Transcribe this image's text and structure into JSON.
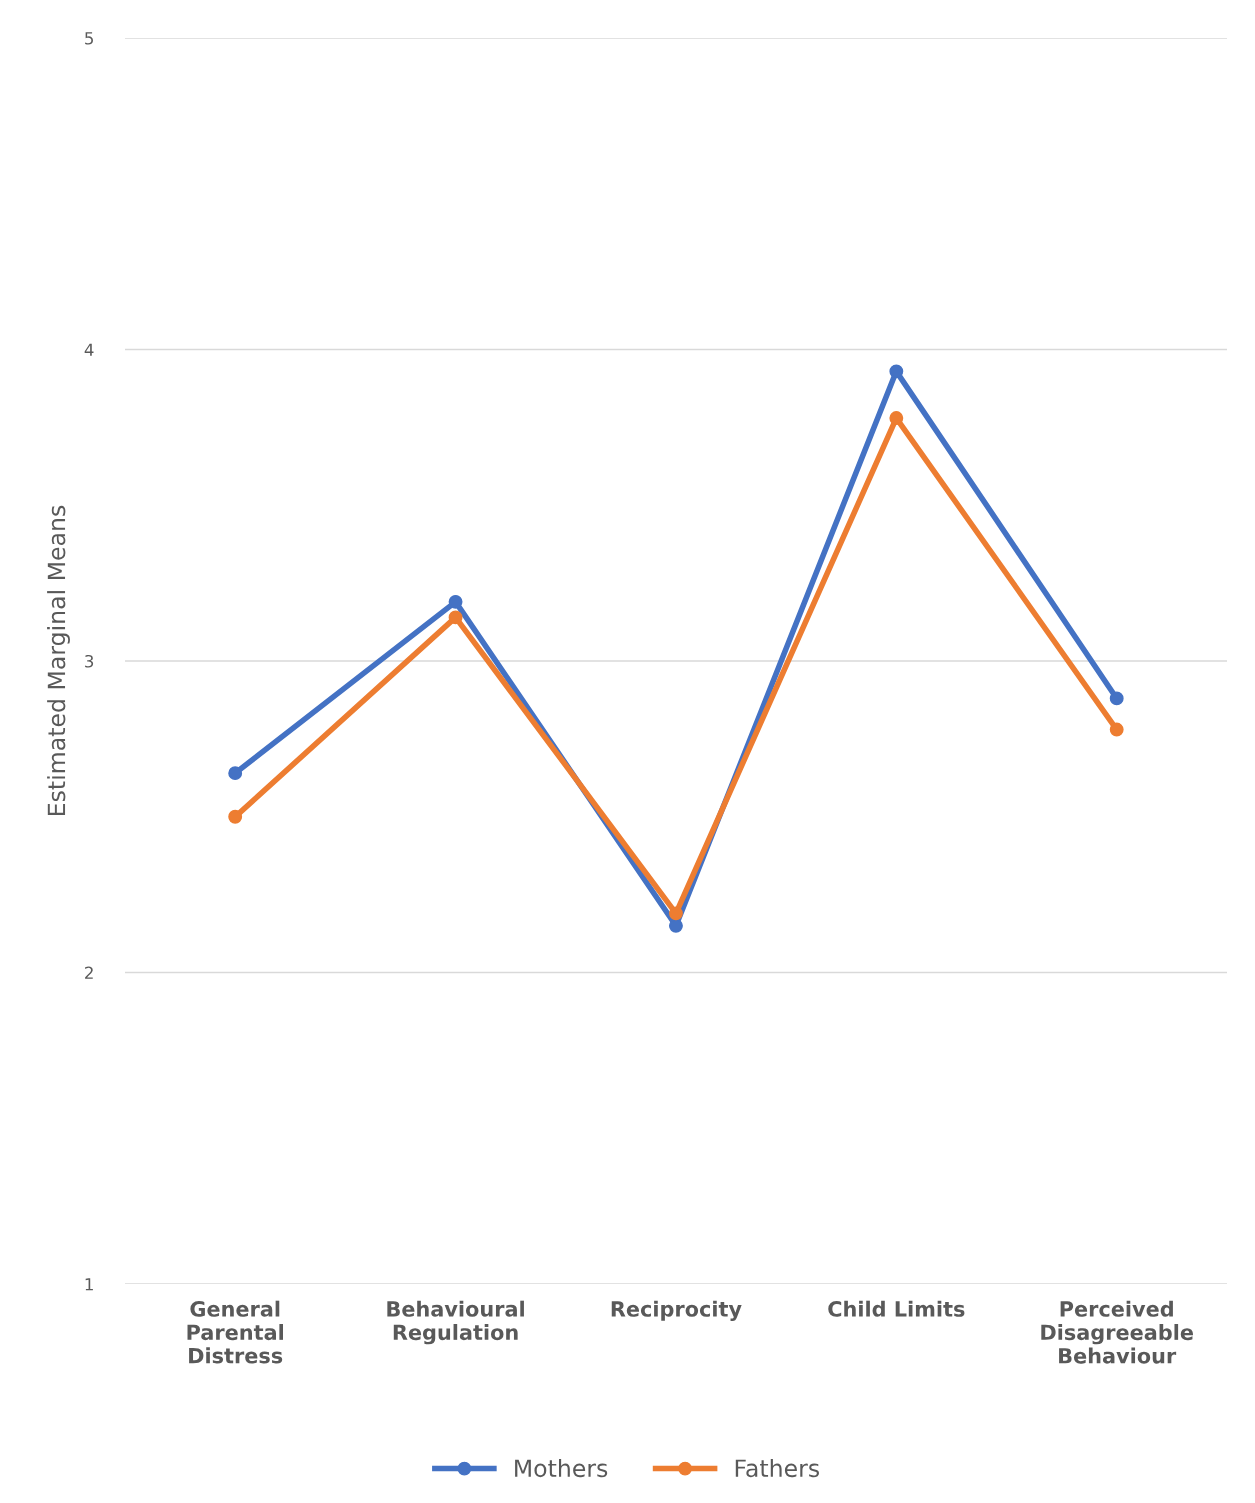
{
  "chart_data": {
    "type": "line",
    "ylabel": "Estimated Marginal Means",
    "categories": [
      "General\nParental\nDistress",
      "Behavioural\nRegulation",
      "Reciprocity",
      "Child Limits",
      "Perceived\nDisagreeable\nBehaviour"
    ],
    "series": [
      {
        "name": "Mothers",
        "color": "#4472c4",
        "values": [
          2.64,
          3.19,
          2.15,
          3.93,
          2.88
        ]
      },
      {
        "name": "Fathers",
        "color": "#ed7d31",
        "values": [
          2.5,
          3.14,
          2.19,
          3.78,
          2.78
        ]
      }
    ],
    "ylim": [
      1,
      5
    ],
    "yticks": [
      1,
      2,
      3,
      4,
      5
    ],
    "grid": "y",
    "legend": "bottom",
    "marker": "circle",
    "line_style": "solid"
  }
}
